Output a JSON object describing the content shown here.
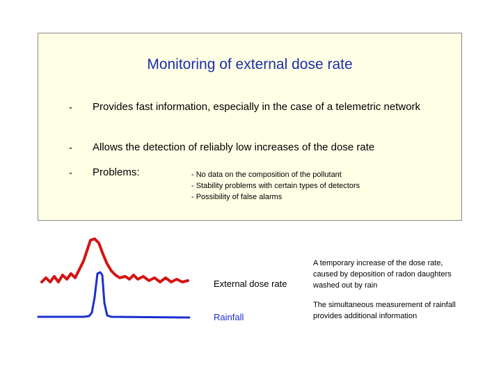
{
  "slide": {
    "title": "Monitoring of external dose rate",
    "bullets": [
      {
        "dash": "-",
        "text": "Provides fast information, especially in the case of a telemetric network"
      },
      {
        "dash": "-",
        "text": "Allows the detection of reliably low increases of the dose rate"
      },
      {
        "dash": "-",
        "text": "Problems:"
      }
    ],
    "problems": [
      "- No data on the composition of the pollutant",
      "- Stability problems with certain types of detectors",
      "- Possibility of false alarms"
    ],
    "legend": {
      "dose_rate": "External dose rate",
      "rainfall": "Rainfall"
    },
    "notes": {
      "dose_rate": "A temporary increase of the dose rate, caused by deposition of radon daughters washed out by rain",
      "rainfall": "The simultaneous measurement of rainfall provides additional information"
    },
    "colors": {
      "title": "#1a2fa8",
      "dose_rate_curve": "#d41414",
      "rainfall_curve": "#1a2fd0",
      "panel_bg": "#ffffe6"
    }
  }
}
